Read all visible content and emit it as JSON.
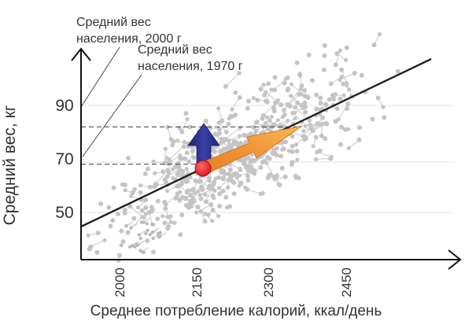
{
  "chart_data": {
    "type": "scatter",
    "xlabel": "Среднее потребление калорий, ккал/день",
    "ylabel": "Средний вес, кг",
    "x_ticks": [
      "2000",
      "2150",
      "2300",
      "2450"
    ],
    "y_ticks": [
      "50",
      "70",
      "90"
    ],
    "grid": true,
    "annotations": [
      {
        "line1": "Средний вес",
        "line2": "населения, 2000 г",
        "y_value": 82
      },
      {
        "line1": "Средний вес",
        "line2": "населения, 1970 г",
        "y_value": 68
      }
    ],
    "colors": {
      "points": "#c4c4c4",
      "links": "#c9c9c9",
      "trend": "#222222",
      "vertical_arrow": "#2b2f8c",
      "diagonal_arrow": "#f39a35",
      "origin_point": "#e3262d"
    }
  }
}
